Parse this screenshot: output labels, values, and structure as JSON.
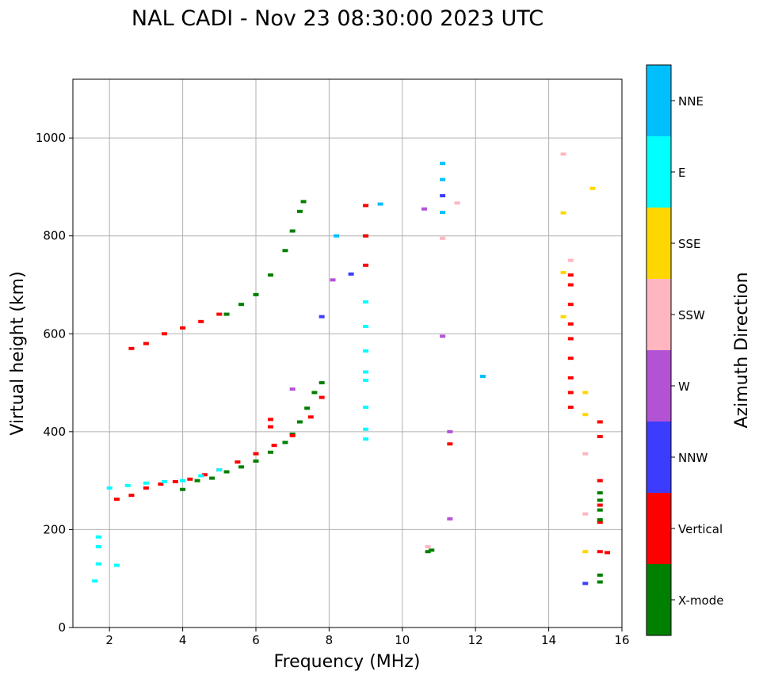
{
  "chart_data": {
    "type": "scatter",
    "title": "NAL CADI - Nov 23 08:30:00 2023 UTC",
    "xlabel": "Frequency (MHz)",
    "ylabel": "Virtual height (km)",
    "xlim": [
      1,
      16
    ],
    "ylim": [
      0,
      1120
    ],
    "xticks": [
      2,
      4,
      6,
      8,
      10,
      12,
      14,
      16
    ],
    "yticks": [
      0,
      200,
      400,
      600,
      800,
      1000
    ],
    "grid": true,
    "colorbar": {
      "title": "Azimuth Direction",
      "entries": [
        {
          "label": "X-mode",
          "color": "#008000"
        },
        {
          "label": "Vertical",
          "color": "#ff0000"
        },
        {
          "label": "NNW",
          "color": "#3c3cff"
        },
        {
          "label": "W",
          "color": "#b452d6"
        },
        {
          "label": "SSW",
          "color": "#ffb6c1"
        },
        {
          "label": "SSE",
          "color": "#ffd700"
        },
        {
          "label": "E",
          "color": "#00ffff"
        },
        {
          "label": "NNE",
          "color": "#00bfff"
        }
      ]
    },
    "traces": [
      {
        "name": "F-trace X-mode",
        "category": "X-mode",
        "points": [
          [
            4.0,
            282
          ],
          [
            4.4,
            300
          ],
          [
            4.8,
            305
          ],
          [
            5.2,
            318
          ],
          [
            5.6,
            328
          ],
          [
            6.0,
            340
          ],
          [
            6.4,
            358
          ],
          [
            6.8,
            378
          ],
          [
            7.0,
            395
          ],
          [
            7.2,
            420
          ],
          [
            7.4,
            448
          ],
          [
            7.6,
            480
          ],
          [
            7.8,
            500
          ]
        ]
      },
      {
        "name": "F-trace Vertical",
        "category": "Vertical",
        "points": [
          [
            2.2,
            262
          ],
          [
            2.6,
            270
          ],
          [
            3.0,
            285
          ],
          [
            3.4,
            293
          ],
          [
            3.8,
            298
          ],
          [
            4.2,
            303
          ],
          [
            4.6,
            312
          ],
          [
            5.0,
            322
          ],
          [
            5.5,
            338
          ],
          [
            6.0,
            355
          ],
          [
            6.5,
            372
          ],
          [
            7.0,
            392
          ],
          [
            7.5,
            430
          ],
          [
            7.8,
            470
          ]
        ]
      },
      {
        "name": "F-trace E",
        "category": "E",
        "points": [
          [
            2.0,
            285
          ],
          [
            2.5,
            290
          ],
          [
            3.0,
            295
          ],
          [
            3.5,
            298
          ],
          [
            4.0,
            300
          ],
          [
            4.5,
            310
          ],
          [
            5.0,
            322
          ]
        ]
      },
      {
        "name": "Upper trace X-mode",
        "category": "X-mode",
        "points": [
          [
            5.2,
            640
          ],
          [
            5.6,
            660
          ],
          [
            6.0,
            680
          ],
          [
            6.4,
            720
          ],
          [
            6.8,
            770
          ],
          [
            7.0,
            810
          ],
          [
            7.2,
            850
          ],
          [
            7.3,
            870
          ]
        ]
      },
      {
        "name": "Upper trace Vertical",
        "category": "Vertical",
        "points": [
          [
            2.6,
            570
          ],
          [
            3.0,
            580
          ],
          [
            3.5,
            600
          ],
          [
            4.0,
            612
          ],
          [
            4.5,
            625
          ],
          [
            5.0,
            640
          ]
        ]
      },
      {
        "name": "9 MHz column E",
        "category": "E",
        "points": [
          [
            9.0,
            385
          ],
          [
            9.0,
            405
          ],
          [
            9.0,
            450
          ],
          [
            9.0,
            505
          ],
          [
            9.0,
            522
          ],
          [
            9.0,
            565
          ],
          [
            9.0,
            615
          ],
          [
            9.0,
            665
          ],
          [
            9.0,
            800
          ]
        ]
      },
      {
        "name": "9 MHz column Vertical",
        "category": "Vertical",
        "points": [
          [
            9.0,
            740
          ],
          [
            9.0,
            800
          ],
          [
            9.0,
            862
          ]
        ]
      },
      {
        "name": "14.6 MHz column Vertical",
        "category": "Vertical",
        "points": [
          [
            14.6,
            450
          ],
          [
            14.6,
            480
          ],
          [
            14.6,
            510
          ],
          [
            14.6,
            550
          ],
          [
            14.6,
            590
          ],
          [
            14.6,
            620
          ],
          [
            14.6,
            660
          ],
          [
            14.6,
            700
          ],
          [
            14.6,
            720
          ]
        ]
      },
      {
        "name": "15.4 MHz column Vertical",
        "category": "Vertical",
        "points": [
          [
            15.4,
            215
          ],
          [
            15.4,
            250
          ],
          [
            15.4,
            300
          ],
          [
            15.4,
            390
          ],
          [
            15.4,
            420
          ],
          [
            15.4,
            155
          ]
        ]
      },
      {
        "name": "15.4 MHz column X-mode",
        "category": "X-mode",
        "points": [
          [
            15.4,
            220
          ],
          [
            15.4,
            240
          ],
          [
            15.4,
            260
          ],
          [
            15.4,
            275
          ],
          [
            15.4,
            93
          ],
          [
            15.4,
            107
          ]
        ]
      },
      {
        "name": "Low echoes",
        "category": "E",
        "points": [
          [
            1.6,
            95
          ],
          [
            1.7,
            130
          ],
          [
            1.7,
            165
          ],
          [
            1.7,
            185
          ],
          [
            2.2,
            127
          ]
        ]
      },
      {
        "name": "E-layer echo",
        "category": "X-mode",
        "points": [
          [
            10.7,
            155
          ],
          [
            10.8,
            158
          ]
        ]
      },
      {
        "name": "Sparse high echoes",
        "category": "NNE",
        "points": [
          [
            11.1,
            948
          ],
          [
            11.1,
            915
          ],
          [
            11.1,
            848
          ],
          [
            12.2,
            513
          ],
          [
            8.2,
            800
          ],
          [
            9.4,
            865
          ]
        ]
      },
      {
        "name": "Sparse SSE echoes",
        "category": "SSE",
        "points": [
          [
            14.4,
            847
          ],
          [
            15.2,
            897
          ],
          [
            15.0,
            480
          ],
          [
            15.0,
            435
          ],
          [
            14.4,
            635
          ],
          [
            14.4,
            725
          ],
          [
            15.0,
            155
          ]
        ]
      },
      {
        "name": "Sparse SSW echoes",
        "category": "SSW",
        "points": [
          [
            14.4,
            967
          ],
          [
            14.6,
            750
          ],
          [
            15.0,
            355
          ],
          [
            15.0,
            232
          ],
          [
            11.1,
            795
          ],
          [
            11.5,
            867
          ],
          [
            10.7,
            165
          ]
        ]
      },
      {
        "name": "Sparse W echoes",
        "category": "W",
        "points": [
          [
            11.3,
            222
          ],
          [
            11.3,
            400
          ],
          [
            11.1,
            595
          ],
          [
            10.6,
            855
          ],
          [
            7.0,
            487
          ],
          [
            8.1,
            710
          ]
        ]
      },
      {
        "name": "Sparse NNW echoes",
        "category": "NNW",
        "points": [
          [
            15.0,
            90
          ],
          [
            11.1,
            882
          ],
          [
            8.6,
            722
          ],
          [
            7.8,
            635
          ]
        ]
      },
      {
        "name": "Sparse Vertical echoes",
        "category": "Vertical",
        "points": [
          [
            11.3,
            375
          ],
          [
            15.6,
            153
          ],
          [
            6.4,
            425
          ],
          [
            6.4,
            410
          ]
        ]
      }
    ]
  }
}
